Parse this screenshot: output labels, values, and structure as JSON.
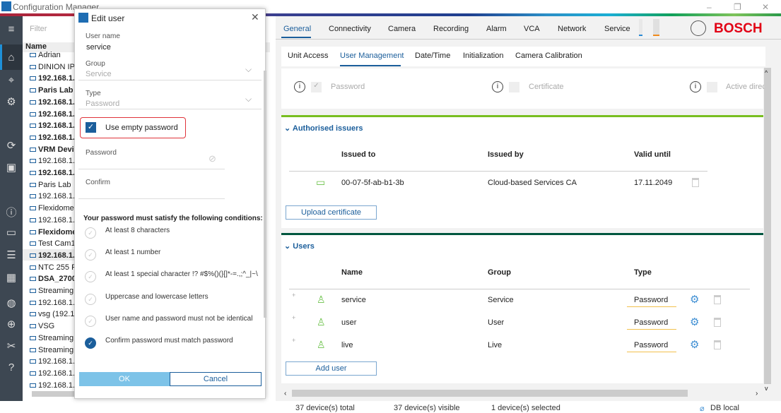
{
  "app": {
    "title": "Configuration Manager",
    "brand": "BOSCH"
  },
  "tree": {
    "filter_placeholder": "Filter",
    "name_header": "Name",
    "items": [
      {
        "l": "Adrian",
        "b": false
      },
      {
        "l": "DINION IP",
        "b": false
      },
      {
        "l": "192.168.1.",
        "b": true
      },
      {
        "l": "Paris Lab",
        "b": true
      },
      {
        "l": "192.168.1.",
        "b": true
      },
      {
        "l": "192.168.1.",
        "b": true
      },
      {
        "l": "192.168.1.",
        "b": true
      },
      {
        "l": "192.168.1.",
        "b": true
      },
      {
        "l": "VRM Devic",
        "b": true
      },
      {
        "l": "192.168.1.",
        "b": false
      },
      {
        "l": "192.168.1.",
        "b": true
      },
      {
        "l": "Paris Lab",
        "b": false
      },
      {
        "l": "192.168.1.",
        "b": false
      },
      {
        "l": "Flexidome",
        "b": false
      },
      {
        "l": "192.168.1.",
        "b": false
      },
      {
        "l": "Flexidome",
        "b": true
      },
      {
        "l": "Test Cam1",
        "b": false
      },
      {
        "l": "192.168.1.:",
        "b": true
      },
      {
        "l": "NTC 255 P",
        "b": false
      },
      {
        "l": "DSA_2700",
        "b": true
      },
      {
        "l": "Streaming",
        "b": false
      },
      {
        "l": "192.168.1.",
        "b": false
      },
      {
        "l": "vsg (192.16",
        "b": false
      },
      {
        "l": "VSG",
        "b": false
      },
      {
        "l": "Streaming",
        "b": false
      },
      {
        "l": "Streaming",
        "b": false
      },
      {
        "l": "192.168.1.",
        "b": false
      },
      {
        "l": "192.168.1.",
        "b": false
      },
      {
        "l": "192.168.1.",
        "b": false
      }
    ]
  },
  "main_tabs": [
    "General",
    "Connectivity",
    "Camera",
    "Recording",
    "Alarm",
    "VCA",
    "Network",
    "Service"
  ],
  "sub_tabs": [
    "Unit Access",
    "User Management",
    "Date/Time",
    "Initialization",
    "Camera Calibration"
  ],
  "auth_types": [
    "Password",
    "Certificate",
    "Active direc"
  ],
  "issuers": {
    "title": "Authorised issuers",
    "headers": [
      "Issued to",
      "Issued by",
      "Valid until"
    ],
    "rows": [
      [
        "00-07-5f-ab-b1-3b",
        "Cloud-based Services CA",
        "17.11.2049"
      ]
    ],
    "upload": "Upload certificate"
  },
  "users": {
    "title": "Users",
    "headers": [
      "Name",
      "Group",
      "Type"
    ],
    "rows": [
      [
        "service",
        "Service",
        "Password"
      ],
      [
        "user",
        "User",
        "Password"
      ],
      [
        "live",
        "Live",
        "Password"
      ]
    ],
    "add": "Add user"
  },
  "status": {
    "total": "37 device(s) total",
    "visible": "37 device(s) visible",
    "selected": "1 device(s) selected",
    "db": "DB local"
  },
  "dialog": {
    "title": "Edit user",
    "username_label": "User name",
    "username": "service",
    "group_label": "Group",
    "group": "Service",
    "type_label": "Type",
    "type": "Password",
    "empty_pw": "Use empty password",
    "empty_pw_checked": true,
    "password_label": "Password",
    "confirm_label": "Confirm",
    "conditions_title": "Your password must satisfy the following conditions:",
    "conditions": [
      {
        "t": "At least 8 characters",
        "ok": false
      },
      {
        "t": "At least 1 number",
        "ok": false
      },
      {
        "t": "At least 1 special character !? #$%()(}[]*-=.,;^_|~\\",
        "ok": false
      },
      {
        "t": "Uppercase and lowercase letters",
        "ok": false
      },
      {
        "t": "User name and password must not be identical",
        "ok": false
      },
      {
        "t": "Confirm password must match password",
        "ok": true
      }
    ],
    "ok": "OK",
    "cancel": "Cancel"
  }
}
